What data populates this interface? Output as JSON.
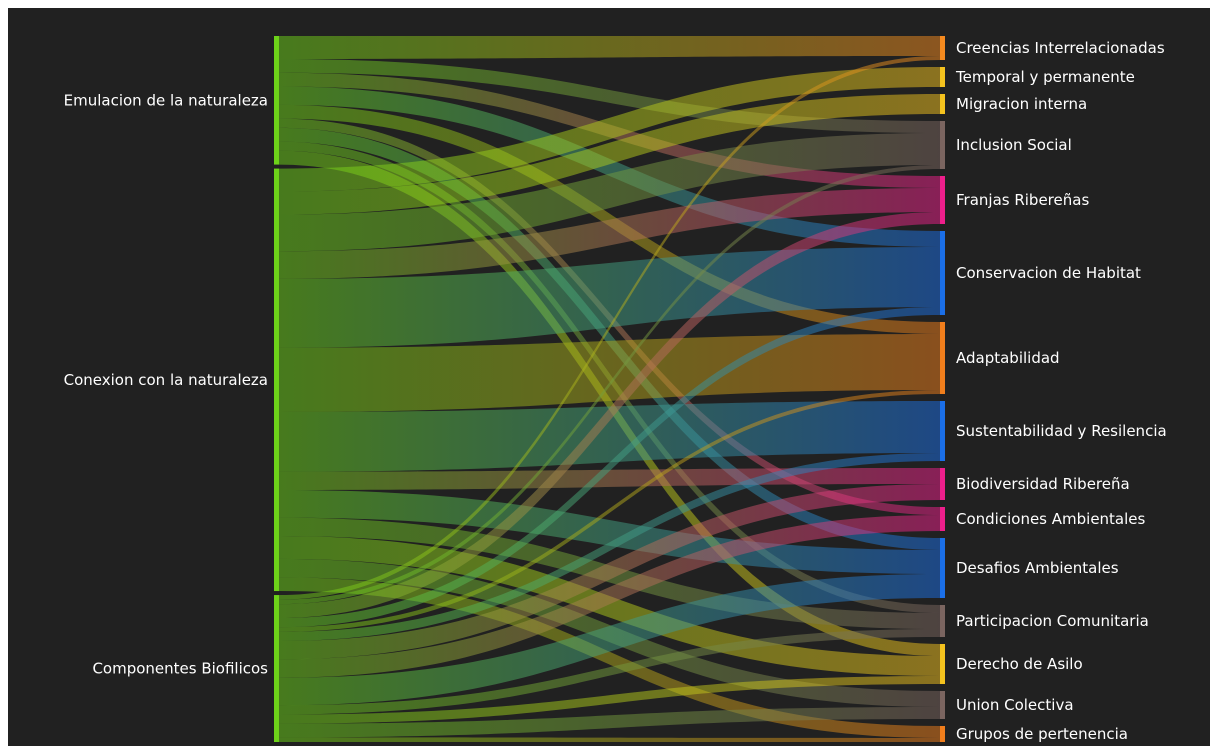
{
  "chart_data": {
    "type": "sankey",
    "sources": [
      {
        "id": "emu",
        "label": "Emulacion de la naturaleza",
        "color": "#6dd319"
      },
      {
        "id": "con",
        "label": "Conexion con la naturaleza",
        "color": "#6dd319"
      },
      {
        "id": "com",
        "label": "Componentes Biofilicos",
        "color": "#6dd319"
      }
    ],
    "targets": [
      {
        "id": "cre",
        "label": "Creencias Interrelacionadas",
        "color": "#f58a1f"
      },
      {
        "id": "tem",
        "label": "Temporal y permanente",
        "color": "#f4c21e"
      },
      {
        "id": "mig",
        "label": "Migracion interna",
        "color": "#f4c21e"
      },
      {
        "id": "inc",
        "label": "Inclusion Social",
        "color": "#7b6560"
      },
      {
        "id": "fra",
        "label": "Franjas Ribereñas",
        "color": "#ee1f8c"
      },
      {
        "id": "cons",
        "label": "Conservacion de Habitat",
        "color": "#1b6fe8"
      },
      {
        "id": "ada",
        "label": "Adaptabilidad",
        "color": "#f17e1c"
      },
      {
        "id": "sus",
        "label": "Sustentabilidad y Resilencia",
        "color": "#1b6fe8"
      },
      {
        "id": "bio",
        "label": "Biodiversidad Ribereña",
        "color": "#ee1f8c"
      },
      {
        "id": "cond",
        "label": "Condiciones Ambientales",
        "color": "#ee1f8c"
      },
      {
        "id": "des",
        "label": "Desafios Ambientales",
        "color": "#1b6fe8"
      },
      {
        "id": "par",
        "label": "Participacion Comunitaria",
        "color": "#7b6560"
      },
      {
        "id": "der",
        "label": "Derecho de Asilo",
        "color": "#f4c21e"
      },
      {
        "id": "uni",
        "label": "Union Colectiva",
        "color": "#7b6560"
      },
      {
        "id": "gru",
        "label": "Grupos de pertenencia",
        "color": "#f17e1c"
      }
    ],
    "links": [
      {
        "source": "emu",
        "target": "cre",
        "value": 5
      },
      {
        "source": "emu",
        "target": "inc",
        "value": 3
      },
      {
        "source": "emu",
        "target": "fra",
        "value": 3
      },
      {
        "source": "emu",
        "target": "cons",
        "value": 4
      },
      {
        "source": "emu",
        "target": "ada",
        "value": 3
      },
      {
        "source": "emu",
        "target": "des",
        "value": 3
      },
      {
        "source": "emu",
        "target": "cond",
        "value": 2
      },
      {
        "source": "emu",
        "target": "par",
        "value": 2
      },
      {
        "source": "emu",
        "target": "der",
        "value": 3
      },
      {
        "source": "con",
        "target": "tem",
        "value": 5
      },
      {
        "source": "con",
        "target": "mig",
        "value": 5
      },
      {
        "source": "con",
        "target": "inc",
        "value": 8
      },
      {
        "source": "con",
        "target": "fra",
        "value": 6
      },
      {
        "source": "con",
        "target": "cons",
        "value": 15
      },
      {
        "source": "con",
        "target": "ada",
        "value": 14
      },
      {
        "source": "con",
        "target": "sus",
        "value": 13
      },
      {
        "source": "con",
        "target": "bio",
        "value": 4
      },
      {
        "source": "con",
        "target": "des",
        "value": 6
      },
      {
        "source": "con",
        "target": "par",
        "value": 4
      },
      {
        "source": "con",
        "target": "der",
        "value": 5
      },
      {
        "source": "con",
        "target": "uni",
        "value": 4
      },
      {
        "source": "con",
        "target": "gru",
        "value": 3
      },
      {
        "source": "com",
        "target": "cre",
        "value": 1
      },
      {
        "source": "com",
        "target": "inc",
        "value": 1
      },
      {
        "source": "com",
        "target": "fra",
        "value": 3
      },
      {
        "source": "com",
        "target": "cons",
        "value": 2
      },
      {
        "source": "com",
        "target": "ada",
        "value": 1
      },
      {
        "source": "com",
        "target": "sus",
        "value": 2
      },
      {
        "source": "com",
        "target": "bio",
        "value": 4
      },
      {
        "source": "com",
        "target": "cond",
        "value": 4
      },
      {
        "source": "com",
        "target": "des",
        "value": 6
      },
      {
        "source": "com",
        "target": "par",
        "value": 2
      },
      {
        "source": "com",
        "target": "der",
        "value": 2
      },
      {
        "source": "com",
        "target": "uni",
        "value": 3
      },
      {
        "source": "com",
        "target": "gru",
        "value": 1
      }
    ]
  }
}
